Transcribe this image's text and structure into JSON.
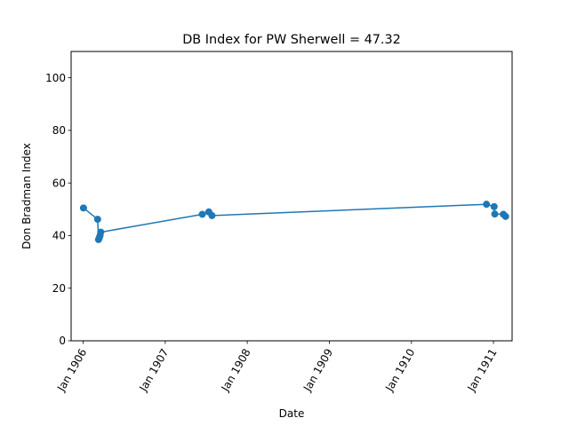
{
  "chart_data": {
    "type": "line",
    "title": "DB Index for PW Sherwell = 47.32",
    "xlabel": "Date",
    "ylabel": "Don Bradman Index",
    "x_type": "date",
    "xlim": [
      "1905-11-08",
      "1911-03-25"
    ],
    "ylim": [
      0,
      110
    ],
    "x_ticks": [
      {
        "date": "1906-01-01",
        "label": "Jan 1906"
      },
      {
        "date": "1907-01-01",
        "label": "Jan 1907"
      },
      {
        "date": "1908-01-01",
        "label": "Jan 1908"
      },
      {
        "date": "1909-01-01",
        "label": "Jan 1909"
      },
      {
        "date": "1910-01-01",
        "label": "Jan 1910"
      },
      {
        "date": "1911-01-01",
        "label": "Jan 1911"
      }
    ],
    "y_ticks": [
      0,
      20,
      40,
      60,
      80,
      100
    ],
    "grid": false,
    "legend": "none",
    "series": [
      {
        "color": "#1f77b4",
        "points": [
          {
            "x": "1906-01-02",
            "y": 50.5
          },
          {
            "x": "1906-03-06",
            "y": 46.2
          },
          {
            "x": "1906-03-10",
            "y": 38.5
          },
          {
            "x": "1906-03-14",
            "y": 39.3
          },
          {
            "x": "1906-03-17",
            "y": 40.1
          },
          {
            "x": "1906-03-20",
            "y": 41.3
          },
          {
            "x": "1907-06-15",
            "y": 48.1
          },
          {
            "x": "1907-07-14",
            "y": 49.0
          },
          {
            "x": "1907-07-28",
            "y": 47.6
          },
          {
            "x": "1910-12-01",
            "y": 51.9
          },
          {
            "x": "1911-01-04",
            "y": 51.0
          },
          {
            "x": "1911-01-07",
            "y": 48.2
          },
          {
            "x": "1911-02-14",
            "y": 48.1
          },
          {
            "x": "1911-02-24",
            "y": 47.3
          }
        ]
      }
    ]
  }
}
